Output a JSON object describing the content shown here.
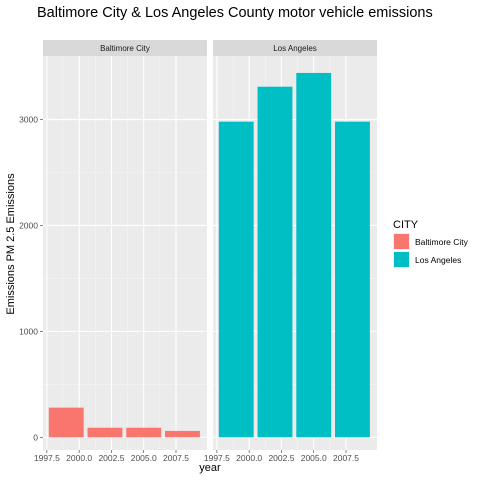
{
  "chart_data": {
    "type": "bar",
    "title": "Baltimore City & Los Angeles County motor vehicle emissions",
    "xlabel": "year",
    "ylabel": "Emissions PM 2.5 Emissions",
    "x_ticks": [
      "1997.5",
      "2000.0",
      "2002.5",
      "2005.0",
      "2007.5"
    ],
    "y_ticks": [
      "0",
      "1000",
      "2000",
      "3000"
    ],
    "xlim": [
      1997.2,
      2009.9
    ],
    "ylim": [
      -120,
      3600
    ],
    "legend": {
      "title": "CITY",
      "position": "right",
      "entries": [
        {
          "label": "Baltimore City",
          "color": "#F8766D"
        },
        {
          "label": "Los Angeles",
          "color": "#00BFC4"
        }
      ]
    },
    "panels": [
      {
        "strip": "Baltimore City",
        "color": "#F8766D",
        "x": [
          1999,
          2002,
          2005,
          2008
        ],
        "values": [
          280,
          90,
          90,
          60
        ]
      },
      {
        "strip": "Los Angeles",
        "color": "#00BFC4",
        "x": [
          1999,
          2002,
          2005,
          2008
        ],
        "values": [
          2980,
          3310,
          3440,
          2980
        ]
      }
    ],
    "bar_width_years": 2.7,
    "grid": true
  }
}
